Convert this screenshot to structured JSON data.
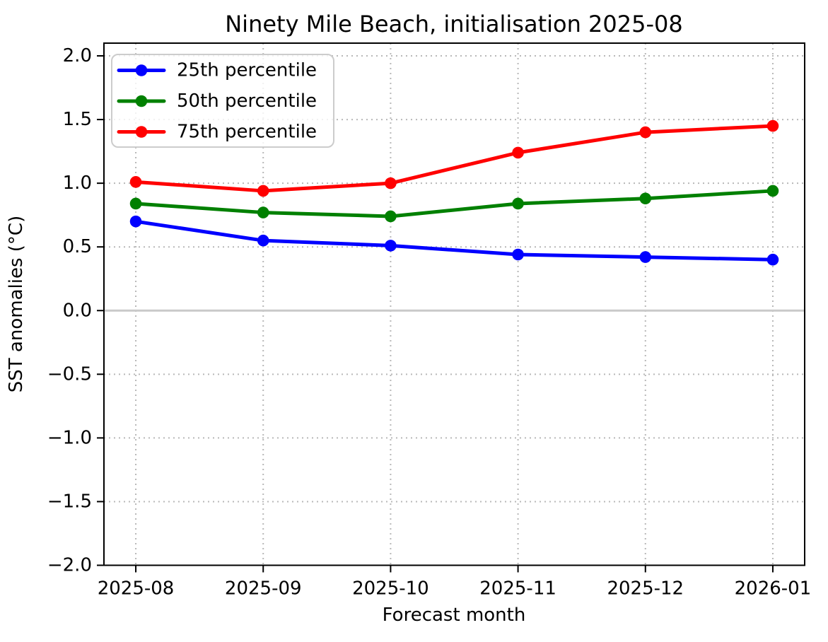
{
  "figure": {
    "background": "#ffffff",
    "spine_color": "#000000",
    "text_color": "#000000"
  },
  "chart_data": {
    "type": "line",
    "title": "Ninety Mile Beach, initialisation 2025-08",
    "xlabel": "Forecast month",
    "ylabel": "SST anomalies (°C)",
    "categories": [
      "2025-08",
      "2025-09",
      "2025-10",
      "2025-11",
      "2025-12",
      "2026-01"
    ],
    "series": [
      {
        "name": "25th percentile",
        "color": "#0000ff",
        "values": [
          0.7,
          0.55,
          0.51,
          0.44,
          0.42,
          0.4
        ]
      },
      {
        "name": "50th percentile",
        "color": "#008000",
        "values": [
          0.84,
          0.77,
          0.74,
          0.84,
          0.88,
          0.94
        ]
      },
      {
        "name": "75th percentile",
        "color": "#ff0000",
        "values": [
          1.01,
          0.94,
          1.0,
          1.24,
          1.4,
          1.45
        ]
      }
    ],
    "yticks": [
      2.0,
      1.5,
      1.0,
      0.5,
      0.0,
      -0.5,
      -1.0,
      -1.5,
      -2.0
    ],
    "ylim": [
      -2.0,
      2.1
    ],
    "xlim_pad": 0.25,
    "grid": true,
    "grid_style": "dotted",
    "grid_color": "#b8b8b8",
    "zero_line_value": 0,
    "zero_line_color": "#c9c9c9",
    "legend_position": "upper left",
    "legend_border_color": "#cccccc"
  }
}
